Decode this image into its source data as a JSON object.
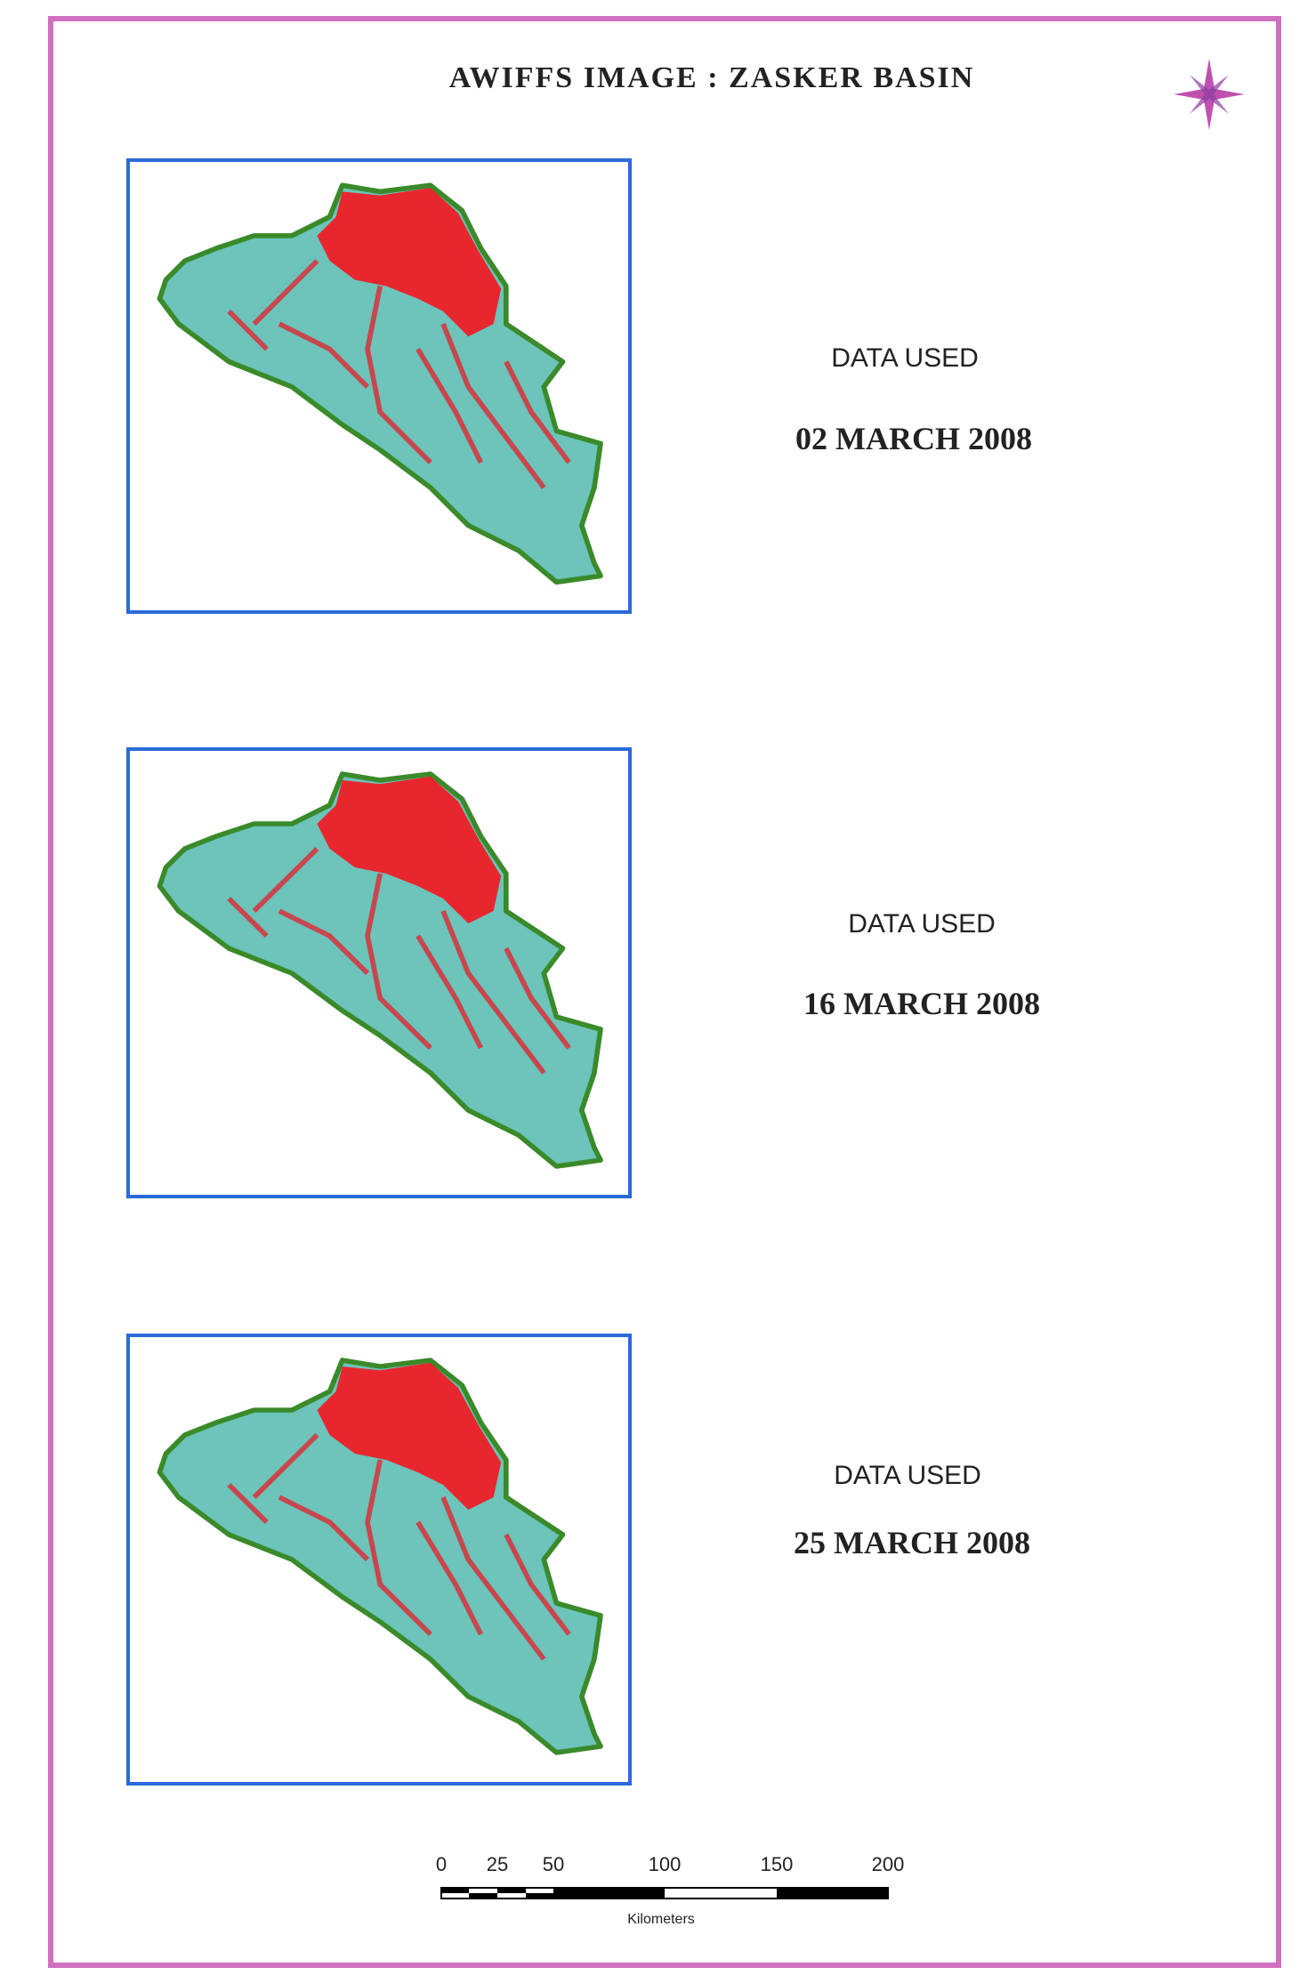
{
  "header": {
    "title": "AWIFFS IMAGE  : ZASKER BASIN"
  },
  "panels": [
    {
      "label": "DATA USED",
      "date": "02 MARCH 2008"
    },
    {
      "label": "DATA USED",
      "date": "16 MARCH 2008"
    },
    {
      "label": "DATA USED",
      "date": "25 MARCH 2008"
    }
  ],
  "scale_bar": {
    "ticks": [
      "0",
      "25",
      "50",
      "100",
      "150",
      "200"
    ],
    "unit": "Kilometers"
  }
}
